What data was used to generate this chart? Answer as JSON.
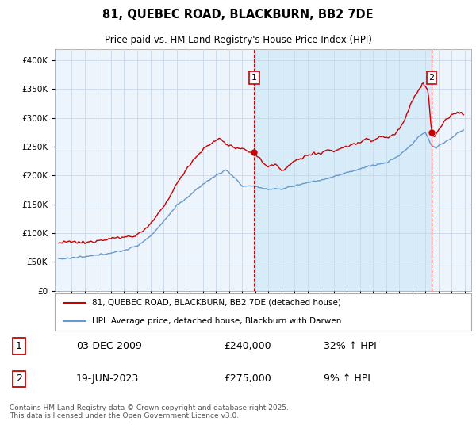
{
  "title": "81, QUEBEC ROAD, BLACKBURN, BB2 7DE",
  "subtitle": "Price paid vs. HM Land Registry's House Price Index (HPI)",
  "legend_line1": "81, QUEBEC ROAD, BLACKBURN, BB2 7DE (detached house)",
  "legend_line2": "HPI: Average price, detached house, Blackburn with Darwen",
  "annotation1_date": "03-DEC-2009",
  "annotation1_price": "£240,000",
  "annotation1_hpi": "32% ↑ HPI",
  "annotation2_date": "19-JUN-2023",
  "annotation2_price": "£275,000",
  "annotation2_hpi": "9% ↑ HPI",
  "footer": "Contains HM Land Registry data © Crown copyright and database right 2025.\nThis data is licensed under the Open Government Licence v3.0.",
  "red_color": "#cc0000",
  "blue_color": "#6699cc",
  "ylim": [
    0,
    420000
  ],
  "yticks": [
    0,
    50000,
    100000,
    150000,
    200000,
    250000,
    300000,
    350000,
    400000
  ],
  "xstart_year": 1995,
  "xend_year": 2026,
  "bg_color": "#ffffff",
  "plot_bg_color": "#eef4fb",
  "grid_color": "#c8d8e8",
  "ann1_year": 2009.92,
  "ann2_year": 2023.47
}
